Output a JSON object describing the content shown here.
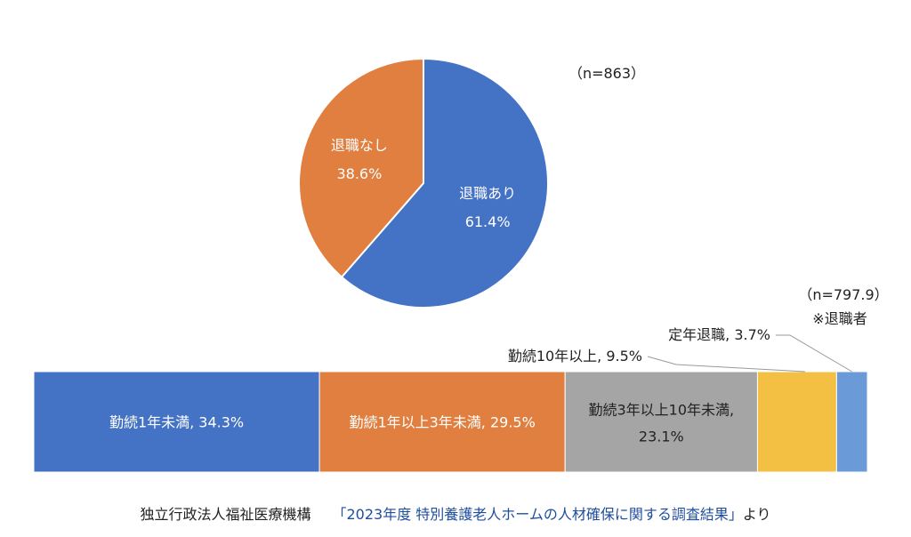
{
  "chart_data": [
    {
      "type": "pie",
      "n_label": "（n=863）",
      "slices": [
        {
          "label": "退職あり",
          "value": 61.4,
          "value_label": "61.4%",
          "color": "#4472C4"
        },
        {
          "label": "退職なし",
          "value": 38.6,
          "value_label": "38.6%",
          "color": "#E07F3F"
        }
      ]
    },
    {
      "type": "bar",
      "orientation": "horizontal-stacked-100",
      "n_label": "（n=797.9）",
      "note": "※退職者",
      "segments": [
        {
          "label_line1": "勤続1年未満, 34.3%",
          "label_line2": "",
          "value": 34.3,
          "color": "#4472C4",
          "label_color": "#ffffff"
        },
        {
          "label_line1": "勤続1年以上3年未満, 29.5%",
          "label_line2": "",
          "value": 29.5,
          "color": "#E07F3F",
          "label_color": "#ffffff"
        },
        {
          "label_line1": "勤続3年以上10年未満,",
          "label_line2": "23.1%",
          "value": 23.1,
          "color": "#A5A5A5",
          "label_color": "#222222"
        },
        {
          "label_line1": "",
          "label_line2": "",
          "callout": "勤続10年以上, 9.5%",
          "value": 9.5,
          "color": "#F4C044",
          "label_color": "#222222"
        },
        {
          "label_line1": "",
          "label_line2": "",
          "callout": "定年退職, 3.7%",
          "value": 3.7,
          "color": "#6A9BD8",
          "label_color": "#222222"
        }
      ]
    }
  ],
  "source": {
    "org": "独立行政法人福祉医療機構",
    "title": "「2023年度 特別養護老人ホームの人材確保に関する調査結果」",
    "suffix": "より"
  }
}
